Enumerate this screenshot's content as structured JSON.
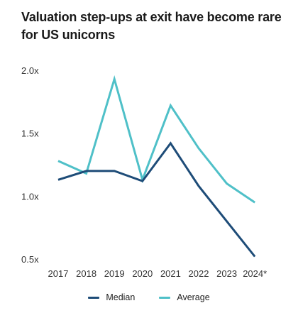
{
  "colors": {
    "median": "#1e4c78",
    "average": "#4fc0c8",
    "text": "#333333"
  },
  "chart_data": {
    "type": "line",
    "title": "Valuation step-ups at exit have become rare for US unicorns",
    "xlabel": "",
    "ylabel": "",
    "categories": [
      "2017",
      "2018",
      "2019",
      "2020",
      "2021",
      "2022",
      "2023",
      "2024*"
    ],
    "y_ticks": [
      "2.0x",
      "1.5x",
      "1.0x",
      "0.5x"
    ],
    "y_tick_values": [
      2.0,
      1.5,
      1.0,
      0.5
    ],
    "ylim": [
      0.5,
      2.0
    ],
    "grid": false,
    "legend_position": "bottom-center",
    "series": [
      {
        "name": "Median",
        "color": "#1e4c78",
        "values": [
          1.13,
          1.2,
          1.2,
          1.12,
          1.42,
          1.08,
          0.8,
          0.52
        ]
      },
      {
        "name": "Average",
        "color": "#4fc0c8",
        "values": [
          1.28,
          1.18,
          1.93,
          1.13,
          1.72,
          1.38,
          1.1,
          0.95
        ]
      }
    ]
  }
}
